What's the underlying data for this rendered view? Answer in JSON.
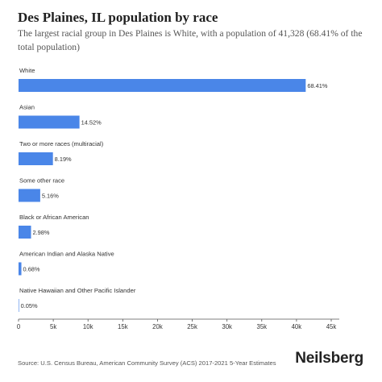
{
  "header": {
    "title": "Des Plaines, IL population by race",
    "subtitle": "The largest racial group in Des Plaines is White, with a population of 41,328 (68.41% of the total population)"
  },
  "footer": {
    "source": "Source: U.S. Census Bureau, American Community Survey (ACS) 2017-2021 5-Year Estimates",
    "brand": "Neilsberg"
  },
  "chart_data": {
    "type": "bar",
    "orientation": "horizontal",
    "categories": [
      "White",
      "Asian",
      "Two or more races (multiracial)",
      "Some other race",
      "Black or African American",
      "American Indian and Alaska Native",
      "Native Hawaiian and Other Pacific Islander"
    ],
    "values": [
      41328,
      8770,
      4950,
      3120,
      1800,
      410,
      30
    ],
    "labels": [
      "68.41%",
      "14.52%",
      "8.19%",
      "5.16%",
      "2.98%",
      "0.68%",
      "0.05%"
    ],
    "xticks": [
      {
        "value": 0,
        "label": "0"
      },
      {
        "value": 5000,
        "label": "5k"
      },
      {
        "value": 10000,
        "label": "10k"
      },
      {
        "value": 15000,
        "label": "15k"
      },
      {
        "value": 20000,
        "label": "20k"
      },
      {
        "value": 25000,
        "label": "25k"
      },
      {
        "value": 30000,
        "label": "30k"
      },
      {
        "value": 35000,
        "label": "35k"
      },
      {
        "value": 40000,
        "label": "40k"
      },
      {
        "value": 45000,
        "label": "45k"
      }
    ],
    "xlim": [
      0,
      45000
    ],
    "bar_color": "#4a86e8",
    "grid": false
  }
}
